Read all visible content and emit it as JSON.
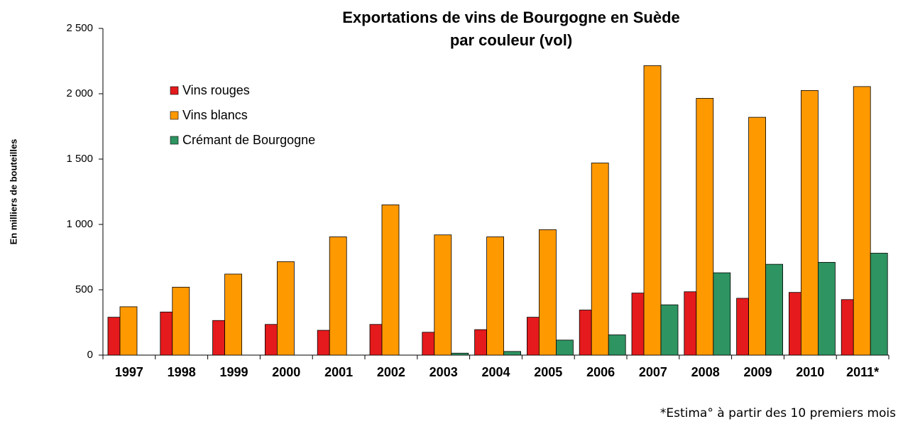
{
  "chart_data": {
    "type": "bar",
    "title": "Exportations de vins de Bourgogne en Suède",
    "subtitle": "par couleur (vol)",
    "y_label": "En milliers de bouteilles",
    "footnote": "*Estima° à partir des 10 premiers mois",
    "categories": [
      "1997",
      "1998",
      "1999",
      "2000",
      "2001",
      "2002",
      "2003",
      "2004",
      "2005",
      "2006",
      "2007",
      "2008",
      "2009",
      "2010",
      "2011*"
    ],
    "series": [
      {
        "name": "Vins rouges",
        "color": "#e41a1c",
        "values": [
          290,
          330,
          265,
          235,
          190,
          235,
          175,
          195,
          290,
          345,
          475,
          485,
          435,
          480,
          425
        ]
      },
      {
        "name": "Vins blancs",
        "color": "#ff9900",
        "values": [
          370,
          520,
          620,
          715,
          905,
          1150,
          920,
          905,
          960,
          1470,
          2215,
          1965,
          1820,
          2025,
          2055
        ]
      },
      {
        "name": "Crémant de Bourgogne",
        "color": "#2e9461",
        "values": [
          null,
          null,
          null,
          null,
          null,
          null,
          15,
          28,
          115,
          155,
          385,
          630,
          695,
          710,
          780
        ]
      }
    ],
    "ylim": [
      0,
      2500
    ],
    "yticks": [
      0,
      500,
      {
        "value": 1000,
        "label": "1 000"
      },
      {
        "value": 1500,
        "label": "1 500"
      },
      {
        "value": 2000,
        "label": "2 000"
      },
      {
        "value": 2500,
        "label": "2 500"
      }
    ],
    "legend": "top-left",
    "grid": false
  }
}
